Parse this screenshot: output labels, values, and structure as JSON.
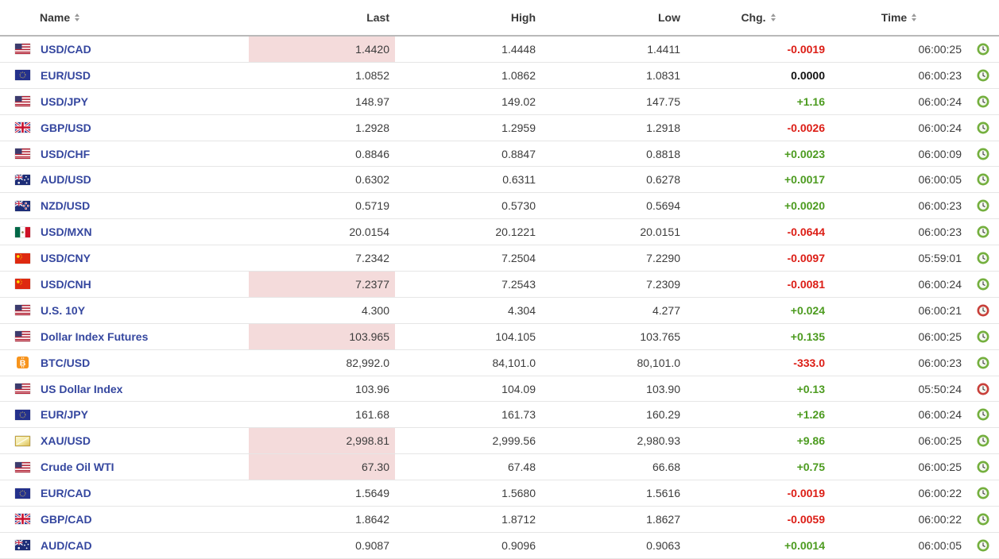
{
  "header": {
    "name": "Name",
    "last": "Last",
    "high": "High",
    "low": "Low",
    "chg": "Chg.",
    "time": "Time"
  },
  "colors": {
    "positive": "#4c9b1f",
    "negative": "#dc1d15",
    "neutral": "#111111",
    "name_link": "#35479f",
    "last_flash_highlight": "#f4dbdb",
    "clock_live": "#74af3e",
    "clock_stale": "#c8403a"
  },
  "rows": [
    {
      "flag": "us",
      "name": "USD/CAD",
      "last": "1.4420",
      "high": "1.4448",
      "low": "1.4411",
      "chg": "-0.0019",
      "chg_dir": "down",
      "time": "06:00:25",
      "clock": "green",
      "last_highlight": true
    },
    {
      "flag": "eu",
      "name": "EUR/USD",
      "last": "1.0852",
      "high": "1.0862",
      "low": "1.0831",
      "chg": "0.0000",
      "chg_dir": "flat",
      "time": "06:00:23",
      "clock": "green",
      "last_highlight": false
    },
    {
      "flag": "us",
      "name": "USD/JPY",
      "last": "148.97",
      "high": "149.02",
      "low": "147.75",
      "chg": "+1.16",
      "chg_dir": "up",
      "time": "06:00:24",
      "clock": "green",
      "last_highlight": false
    },
    {
      "flag": "uk",
      "name": "GBP/USD",
      "last": "1.2928",
      "high": "1.2959",
      "low": "1.2918",
      "chg": "-0.0026",
      "chg_dir": "down",
      "time": "06:00:24",
      "clock": "green",
      "last_highlight": false
    },
    {
      "flag": "us",
      "name": "USD/CHF",
      "last": "0.8846",
      "high": "0.8847",
      "low": "0.8818",
      "chg": "+0.0023",
      "chg_dir": "up",
      "time": "06:00:09",
      "clock": "green",
      "last_highlight": false
    },
    {
      "flag": "au",
      "name": "AUD/USD",
      "last": "0.6302",
      "high": "0.6311",
      "low": "0.6278",
      "chg": "+0.0017",
      "chg_dir": "up",
      "time": "06:00:05",
      "clock": "green",
      "last_highlight": false
    },
    {
      "flag": "nz",
      "name": "NZD/USD",
      "last": "0.5719",
      "high": "0.5730",
      "low": "0.5694",
      "chg": "+0.0020",
      "chg_dir": "up",
      "time": "06:00:23",
      "clock": "green",
      "last_highlight": false
    },
    {
      "flag": "mx",
      "name": "USD/MXN",
      "last": "20.0154",
      "high": "20.1221",
      "low": "20.0151",
      "chg": "-0.0644",
      "chg_dir": "down",
      "time": "06:00:23",
      "clock": "green",
      "last_highlight": false
    },
    {
      "flag": "cn",
      "name": "USD/CNY",
      "last": "7.2342",
      "high": "7.2504",
      "low": "7.2290",
      "chg": "-0.0097",
      "chg_dir": "down",
      "time": "05:59:01",
      "clock": "green",
      "last_highlight": false
    },
    {
      "flag": "cn",
      "name": "USD/CNH",
      "last": "7.2377",
      "high": "7.2543",
      "low": "7.2309",
      "chg": "-0.0081",
      "chg_dir": "down",
      "time": "06:00:24",
      "clock": "green",
      "last_highlight": true
    },
    {
      "flag": "us",
      "name": "U.S. 10Y",
      "last": "4.300",
      "high": "4.304",
      "low": "4.277",
      "chg": "+0.024",
      "chg_dir": "up",
      "time": "06:00:21",
      "clock": "red",
      "last_highlight": false
    },
    {
      "flag": "us",
      "name": "Dollar Index Futures",
      "last": "103.965",
      "high": "104.105",
      "low": "103.765",
      "chg": "+0.135",
      "chg_dir": "up",
      "time": "06:00:25",
      "clock": "green",
      "last_highlight": true
    },
    {
      "flag": "btc",
      "name": "BTC/USD",
      "last": "82,992.0",
      "high": "84,101.0",
      "low": "80,101.0",
      "chg": "-333.0",
      "chg_dir": "down",
      "time": "06:00:23",
      "clock": "green",
      "last_highlight": false
    },
    {
      "flag": "us",
      "name": "US Dollar Index",
      "last": "103.96",
      "high": "104.09",
      "low": "103.90",
      "chg": "+0.13",
      "chg_dir": "up",
      "time": "05:50:24",
      "clock": "red",
      "last_highlight": false
    },
    {
      "flag": "eu",
      "name": "EUR/JPY",
      "last": "161.68",
      "high": "161.73",
      "low": "160.29",
      "chg": "+1.26",
      "chg_dir": "up",
      "time": "06:00:24",
      "clock": "green",
      "last_highlight": false
    },
    {
      "flag": "gold",
      "name": "XAU/USD",
      "last": "2,998.81",
      "high": "2,999.56",
      "low": "2,980.93",
      "chg": "+9.86",
      "chg_dir": "up",
      "time": "06:00:25",
      "clock": "green",
      "last_highlight": true
    },
    {
      "flag": "us",
      "name": "Crude Oil WTI",
      "last": "67.30",
      "high": "67.48",
      "low": "66.68",
      "chg": "+0.75",
      "chg_dir": "up",
      "time": "06:00:25",
      "clock": "green",
      "last_highlight": true
    },
    {
      "flag": "eu",
      "name": "EUR/CAD",
      "last": "1.5649",
      "high": "1.5680",
      "low": "1.5616",
      "chg": "-0.0019",
      "chg_dir": "down",
      "time": "06:00:22",
      "clock": "green",
      "last_highlight": false
    },
    {
      "flag": "uk",
      "name": "GBP/CAD",
      "last": "1.8642",
      "high": "1.8712",
      "low": "1.8627",
      "chg": "-0.0059",
      "chg_dir": "down",
      "time": "06:00:22",
      "clock": "green",
      "last_highlight": false
    },
    {
      "flag": "au",
      "name": "AUD/CAD",
      "last": "0.9087",
      "high": "0.9096",
      "low": "0.9063",
      "chg": "+0.0014",
      "chg_dir": "up",
      "time": "06:00:05",
      "clock": "green",
      "last_highlight": false
    }
  ]
}
